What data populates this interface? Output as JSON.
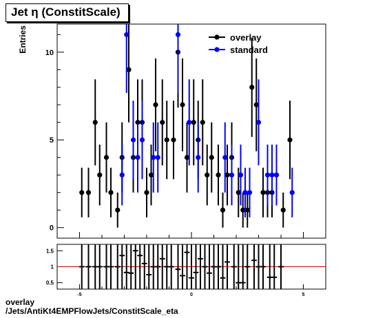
{
  "title": "Jet  η (ConstitScale)",
  "caption": {
    "line1": "overlay",
    "line2": "/Jets/AntiKt4EMPFlowJets/ConstitScale_eta"
  },
  "colors": {
    "overlay": "#000000",
    "standard": "#0000ff",
    "ratio_line": "#cc0000"
  },
  "chart_data": [
    {
      "type": "scatter",
      "panel": "main",
      "ylabel": "Entries",
      "xlim": [
        -6.0,
        6.0
      ],
      "ylim": [
        -0.6,
        11.6
      ],
      "yticks": [
        0,
        5,
        10
      ],
      "legend": {
        "position": "top-right",
        "entries": [
          "overlay",
          "standard"
        ]
      },
      "series": [
        {
          "name": "overlay",
          "x": [
            -4.9,
            -4.6,
            -4.3,
            -4.1,
            -3.8,
            -3.6,
            -3.3,
            -3.1,
            -2.8,
            -2.6,
            -2.4,
            -2.2,
            -2.0,
            -1.8,
            -1.6,
            -1.3,
            -1.1,
            -0.8,
            -0.6,
            -0.4,
            -0.2,
            0.1,
            0.3,
            0.5,
            0.7,
            0.9,
            1.2,
            1.4,
            1.6,
            1.8,
            2.1,
            2.3,
            2.5,
            2.7,
            2.9,
            3.2,
            3.4,
            3.6,
            3.8,
            4.1,
            4.4
          ],
          "y": [
            2,
            2,
            6,
            3,
            4,
            2,
            1,
            4,
            9,
            4,
            6,
            6,
            2,
            3,
            7,
            6,
            5,
            5,
            10,
            7,
            4,
            6,
            5,
            6,
            3,
            4,
            3,
            1,
            3,
            4,
            2,
            1,
            1,
            8,
            7,
            2,
            2,
            2,
            3,
            1,
            5
          ]
        },
        {
          "name": "standard",
          "x": [
            -3.1,
            -2.9,
            -2.6,
            -2.4,
            -2.2,
            -1.7,
            -1.5,
            -0.6,
            -0.1,
            0.3,
            1.5,
            1.8,
            2.2,
            2.4,
            2.6,
            3.0,
            3.4,
            3.6,
            3.8,
            4.5
          ],
          "y": [
            3,
            11,
            5,
            4,
            5,
            4,
            4,
            11,
            6,
            4,
            4,
            3,
            3,
            2,
            2,
            6,
            3,
            3,
            3,
            2
          ]
        }
      ]
    },
    {
      "type": "scatter",
      "panel": "ratio",
      "xlim": [
        -6.0,
        6.0
      ],
      "ylim": [
        0.3,
        1.7
      ],
      "yticks": [
        0.5,
        1,
        1.5
      ],
      "xticks": [
        -5,
        0,
        5
      ],
      "reference_line": 1,
      "series": [
        {
          "name": "ratio",
          "x": [
            -4.9,
            -4.6,
            -4.3,
            -4.1,
            -3.8,
            -3.6,
            -3.3,
            -3.1,
            -2.9,
            -2.7,
            -2.5,
            -2.3,
            -2.1,
            -1.9,
            -1.7,
            -1.5,
            -1.3,
            -1.1,
            -0.9,
            -0.6,
            -0.4,
            -0.2,
            0.0,
            0.2,
            0.4,
            0.6,
            0.8,
            1.0,
            1.2,
            1.4,
            1.6,
            1.9,
            2.1,
            2.3,
            2.5,
            2.8,
            3.0,
            3.2,
            3.5,
            3.7,
            4.0
          ],
          "y": [
            1.0,
            1.0,
            1.0,
            1.0,
            1.0,
            1.0,
            1.0,
            1.35,
            0.82,
            0.8,
            1.5,
            1.35,
            1.1,
            0.75,
            1.0,
            1.0,
            1.25,
            1.0,
            1.0,
            0.92,
            0.72,
            1.45,
            0.65,
            0.82,
            1.25,
            1.0,
            0.8,
            1.0,
            1.0,
            0.65,
            1.15,
            1.0,
            0.5,
            0.5,
            1.0,
            1.2,
            1.0,
            1.0,
            0.67,
            0.67,
            1.0
          ]
        }
      ]
    }
  ]
}
